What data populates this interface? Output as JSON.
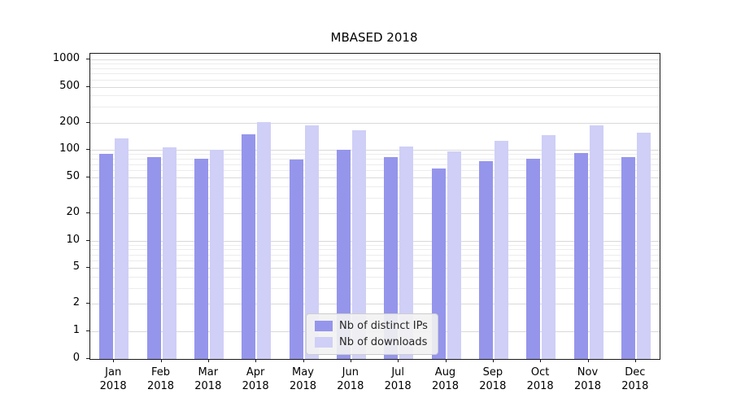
{
  "chart_data": {
    "type": "bar",
    "title": "MBASED 2018",
    "categories": [
      "Jan",
      "Feb",
      "Mar",
      "Apr",
      "May",
      "Jun",
      "Jul",
      "Aug",
      "Sep",
      "Oct",
      "Nov",
      "Dec"
    ],
    "xtick_year": "2018",
    "series": [
      {
        "name": "Nb of distinct IPs",
        "color": "#9595ec",
        "values": [
          90,
          83,
          80,
          150,
          78,
          100,
          83,
          63,
          75,
          81,
          92,
          83
        ]
      },
      {
        "name": "Nb of downloads",
        "color": "#cfcff7",
        "values": [
          135,
          108,
          100,
          205,
          188,
          165,
          110,
          97,
          127,
          147,
          188,
          155
        ]
      }
    ],
    "yscale": "symlog",
    "yticks": [
      0,
      1,
      2,
      5,
      10,
      20,
      50,
      100,
      200,
      500,
      1000
    ],
    "ylim": [
      0,
      1200
    ],
    "grid": "on",
    "legend_position": "inside-bottom-center"
  }
}
